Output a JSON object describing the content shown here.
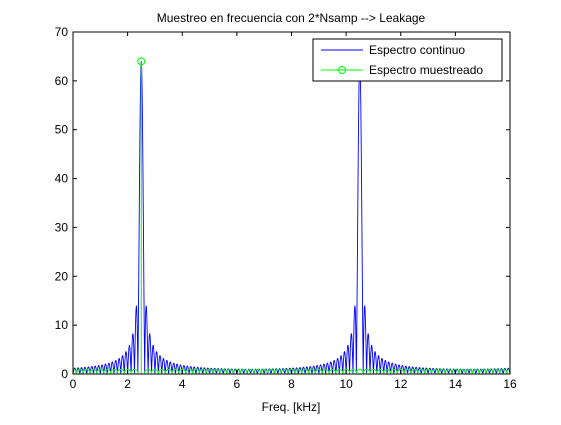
{
  "chart_data": {
    "type": "line",
    "title": "Muestreo en frecuencia con 2*Nsamp --> Leakage",
    "xlabel": "Freq. [kHz]",
    "ylabel": "",
    "xlim": [
      0,
      16
    ],
    "ylim": [
      0,
      70
    ],
    "x_ticks": [
      "0",
      "2",
      "4",
      "6",
      "8",
      "10",
      "12",
      "14",
      "16"
    ],
    "y_ticks": [
      "0",
      "10",
      "20",
      "30",
      "40",
      "50",
      "60",
      "70"
    ],
    "grid": false,
    "legend_position": "top-right",
    "series": [
      {
        "name": "Espectro continuo",
        "color": "#0000ff",
        "style": "line",
        "peak_x": 2.5,
        "peak_value": 64,
        "lobe_spacing": 0.125,
        "x_range": [
          0,
          16
        ]
      },
      {
        "name": "Espectro muestreado",
        "color": "#00ff00",
        "style": "stem-circle",
        "x_step": 0.25,
        "x_range": [
          0,
          16
        ],
        "peak_x": 2.5,
        "peak_value": 64,
        "baseline_value": 0.2
      }
    ]
  }
}
